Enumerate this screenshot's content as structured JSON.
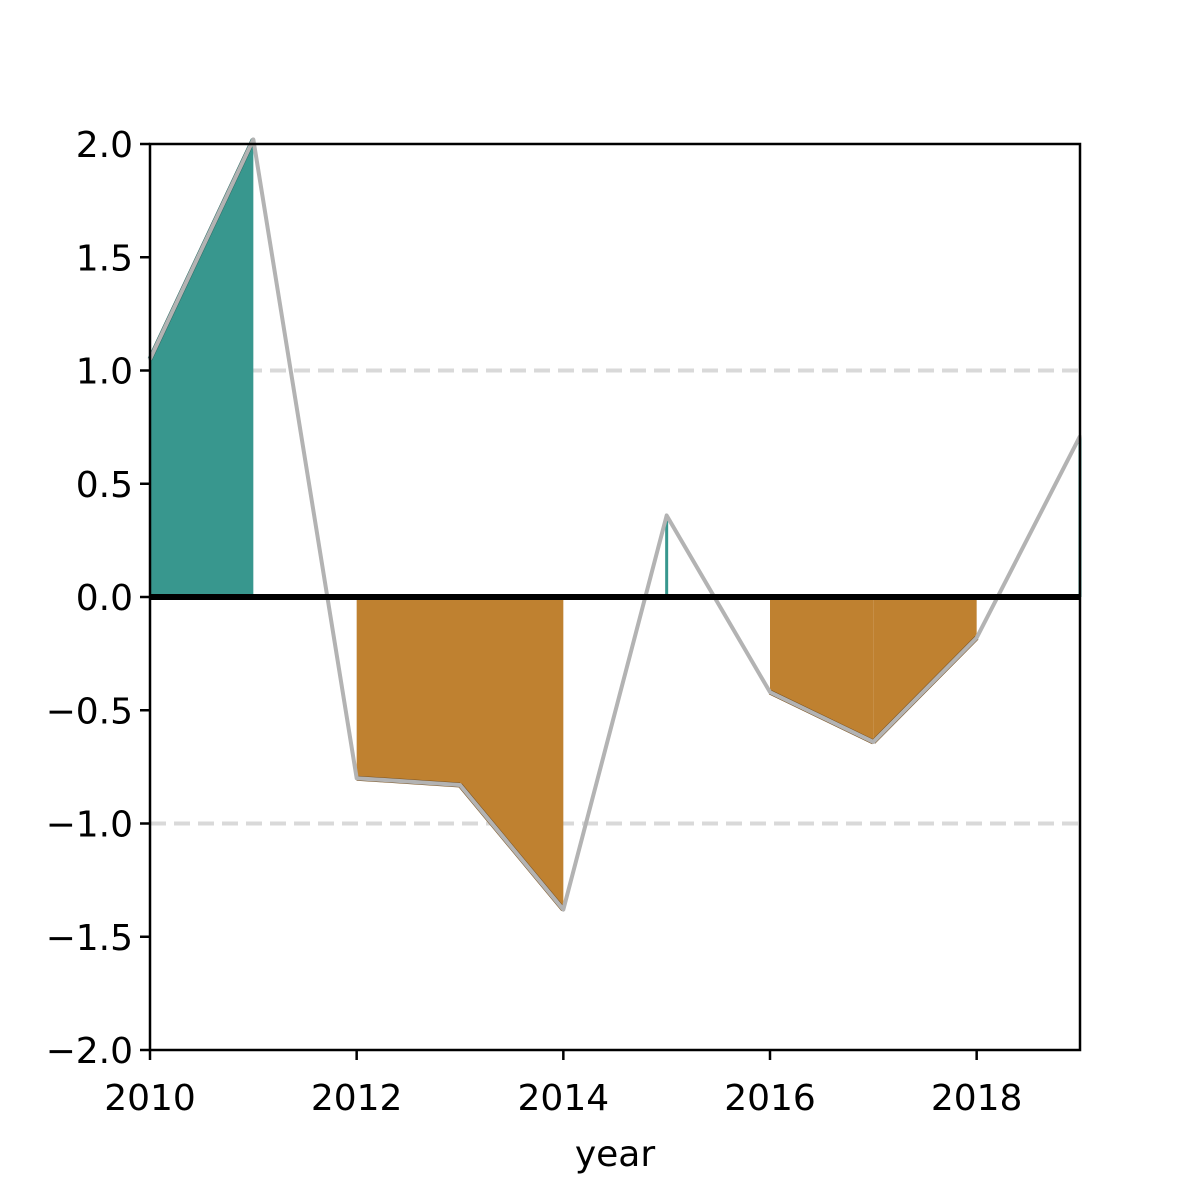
{
  "chart_data": {
    "type": "area",
    "title": "",
    "xlabel": "year",
    "ylabel": "",
    "x": [
      2010,
      2011,
      2012,
      2013,
      2014,
      2015,
      2016,
      2017,
      2018,
      2019
    ],
    "series": [
      {
        "values": [
          1.05,
          2.02,
          -0.8,
          -0.83,
          -1.38,
          0.36,
          -0.42,
          -0.64,
          -0.18,
          0.71
        ]
      }
    ],
    "xlim": [
      2010,
      2019
    ],
    "ylim": [
      -2.0,
      2.0
    ],
    "xticks": [
      2010,
      2012,
      2014,
      2016,
      2018
    ],
    "xtick_labels": [
      "2010",
      "2012",
      "2014",
      "2016",
      "2018"
    ],
    "yticks": [
      -2.0,
      -1.5,
      -1.0,
      -0.5,
      0.0,
      0.5,
      1.0,
      1.5,
      2.0
    ],
    "ytick_labels": [
      "−2.0",
      "−1.5",
      "−1.0",
      "−0.5",
      "0.0",
      "0.5",
      "1.0",
      "1.5",
      "2.0"
    ],
    "reference_lines": [
      1.0,
      -1.0
    ],
    "zero_line": 0.0,
    "grid": false,
    "colors": {
      "positive_fill": "#38978e",
      "positive_edge": "#2b6b64",
      "negative_fill": "#bf8130",
      "negative_edge": "#7a5220",
      "line": "#b3b3b3",
      "reference_line": "#d9d9d9",
      "zero_line": "#000000"
    }
  }
}
